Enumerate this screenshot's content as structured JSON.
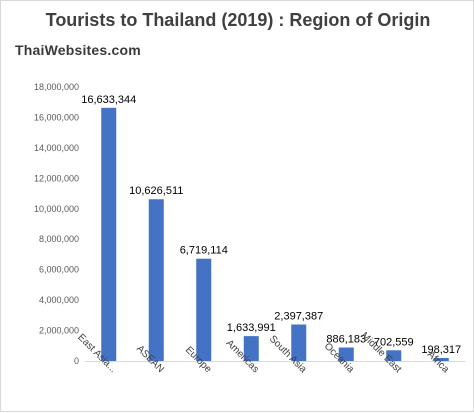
{
  "watermark": "ThaiWebsites.com",
  "chart_data": {
    "type": "bar",
    "title": "Tourists to Thailand (2019) : Region of Origin",
    "xlabel": "",
    "ylabel": "",
    "categories": [
      "East Asia...",
      "ASEAN",
      "Europe",
      "Americas",
      "South Asia",
      "Oceania",
      "Middle East",
      "Africa"
    ],
    "values": [
      16633344,
      10626511,
      6719114,
      1633991,
      2397387,
      886183,
      702559,
      198317
    ],
    "data_labels": [
      "16,633,344",
      "10,626,511",
      "6,719,114",
      "1,633,991",
      "2,397,387",
      "886,183",
      "702,559",
      "198,317"
    ],
    "ylim": [
      0,
      18000000
    ],
    "yticks": [
      0,
      2000000,
      4000000,
      6000000,
      8000000,
      10000000,
      12000000,
      14000000,
      16000000,
      18000000
    ],
    "ytick_labels": [
      "0",
      "2,000,000",
      "4,000,000",
      "6,000,000",
      "8,000,000",
      "10,000,000",
      "12,000,000",
      "14,000,000",
      "16,000,000",
      "18,000,000"
    ],
    "grid": false,
    "legend": "none",
    "bar_color": "#4472c4",
    "axis_color": "#d9d9d9"
  }
}
